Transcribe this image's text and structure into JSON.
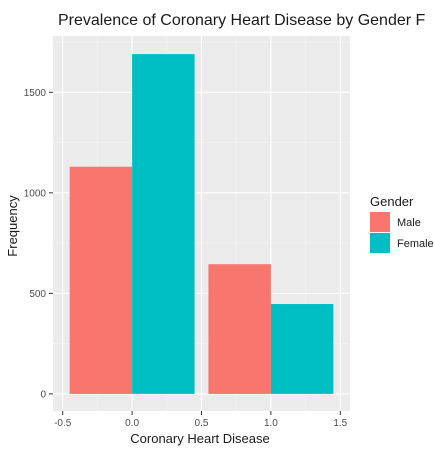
{
  "chart_data": {
    "type": "bar",
    "title": "Prevalence of Coronary Heart Disease by Gender   F",
    "xlabel": "Coronary Heart Disease",
    "ylabel": "Frequency",
    "x_ticks": [
      "-0.5",
      "0.0",
      "0.5",
      "1.0",
      "1.5"
    ],
    "y_ticks": [
      "0",
      "500",
      "1000",
      "1500"
    ],
    "xlim": [
      -0.57,
      1.57
    ],
    "ylim": [
      -85,
      1780
    ],
    "grid": true,
    "legend_position": "right",
    "legend_title": "Gender",
    "series": [
      {
        "name": "Male",
        "color": "#F8766D",
        "values": [
          {
            "x": 0,
            "y": 1130
          },
          {
            "x": 1,
            "y": 645
          }
        ]
      },
      {
        "name": "Female",
        "color": "#00BFC4",
        "values": [
          {
            "x": 0,
            "y": 1690
          },
          {
            "x": 1,
            "y": 447
          }
        ]
      }
    ]
  },
  "colors": {
    "panel_background": "#EBEBEB",
    "grid_major": "#FFFFFF",
    "male": "#F8766D",
    "female": "#00BFC4"
  }
}
